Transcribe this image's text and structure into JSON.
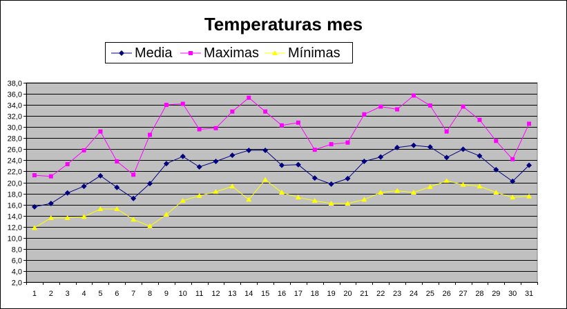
{
  "chart_data": {
    "type": "line",
    "title": "Temperaturas mes",
    "xlabel": "",
    "ylabel": "",
    "ylim": [
      2.0,
      38.0
    ],
    "ytick_step": 2.0,
    "grid": true,
    "legend_position": "top",
    "plot_background": "#c0c0c0",
    "x": [
      1,
      2,
      3,
      4,
      5,
      6,
      7,
      8,
      9,
      10,
      11,
      12,
      13,
      14,
      15,
      16,
      17,
      18,
      19,
      20,
      21,
      22,
      23,
      24,
      25,
      26,
      27,
      28,
      29,
      30,
      31
    ],
    "series": [
      {
        "name": "Media",
        "color": "#000080",
        "marker": "diamond",
        "values": [
          15.6,
          16.2,
          18.1,
          19.3,
          21.2,
          19.1,
          17.1,
          19.8,
          23.4,
          24.7,
          22.8,
          23.8,
          24.9,
          25.8,
          25.8,
          23.1,
          23.2,
          20.8,
          19.7,
          20.7,
          23.8,
          24.6,
          26.3,
          26.7,
          26.4,
          24.5,
          26.0,
          24.8,
          22.3,
          20.2,
          23.1
        ]
      },
      {
        "name": "Maximas",
        "color": "#ff00ff",
        "marker": "square",
        "values": [
          21.3,
          21.1,
          23.3,
          25.8,
          29.2,
          23.8,
          21.4,
          28.6,
          34.0,
          34.2,
          29.6,
          29.8,
          32.8,
          35.3,
          32.8,
          30.3,
          30.8,
          25.9,
          26.9,
          27.2,
          32.3,
          33.7,
          33.2,
          35.7,
          33.9,
          29.2,
          33.7,
          31.3,
          27.5,
          24.2,
          30.6
        ]
      },
      {
        "name": "Mínimas",
        "color": "#ffff00",
        "marker": "triangle",
        "values": [
          11.8,
          13.6,
          13.6,
          13.8,
          15.2,
          15.2,
          13.3,
          12.1,
          14.2,
          16.7,
          17.6,
          18.3,
          19.3,
          16.9,
          20.5,
          18.2,
          17.3,
          16.7,
          16.2,
          16.2,
          16.9,
          18.2,
          18.5,
          18.2,
          19.2,
          20.3,
          19.6,
          19.3,
          18.2,
          17.3,
          17.5
        ]
      }
    ]
  }
}
